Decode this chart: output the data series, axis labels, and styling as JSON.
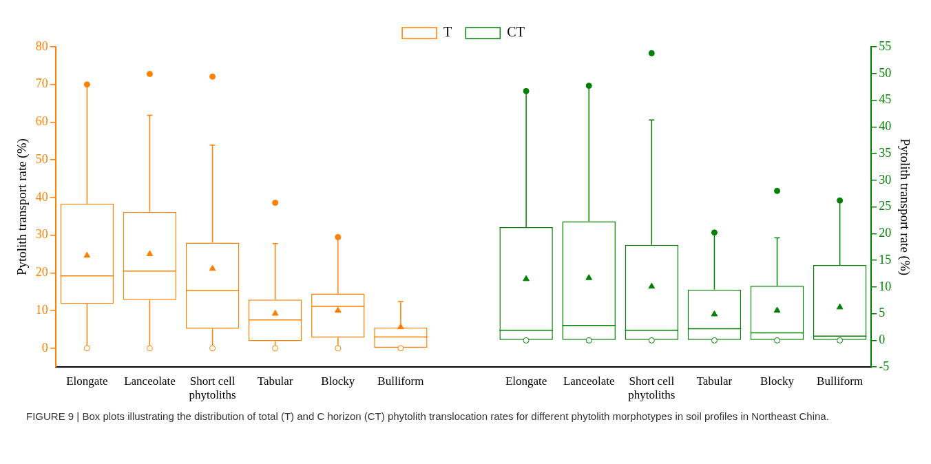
{
  "chart_data": {
    "type": "box",
    "ylabel": "Pytolith transport rate (%)",
    "y2label": "Pytolith transport rate (%)",
    "categories": [
      "Elongate",
      "Lanceolate",
      "Short cell phytoliths",
      "Tabular",
      "Blocky",
      "Bulliform",
      null,
      "Elongate",
      "Lanceolate",
      "Short cell phytoliths",
      "Tabular",
      "Blocky",
      "Bulliform"
    ],
    "ylim": [
      -5,
      80
    ],
    "yticks": [
      0,
      10,
      20,
      30,
      40,
      50,
      60,
      70,
      80
    ],
    "y2lim": [
      -5,
      55
    ],
    "y2ticks": [
      -5,
      0,
      5,
      10,
      15,
      20,
      25,
      30,
      35,
      40,
      45,
      50,
      55
    ],
    "grid": false,
    "legend": "top",
    "series": [
      {
        "name": "T",
        "color": "#ff8000",
        "boxes": [
          {
            "low": 0,
            "q1": 11.8,
            "median": 19.2,
            "q3": 38.4,
            "high": 70,
            "mean": 24.6,
            "outliers": [
              0,
              70
            ]
          },
          {
            "low": 0,
            "q1": 12.8,
            "median": 20.5,
            "q3": 36.2,
            "high": 61.8,
            "mean": 25,
            "outliers": [
              0,
              72.8
            ]
          },
          {
            "low": 0,
            "q1": 5.2,
            "median": 15.3,
            "q3": 28,
            "high": 53.9,
            "mean": 21.1,
            "outliers": [
              0,
              72.1
            ]
          },
          {
            "low": 0,
            "q1": 1.9,
            "median": 7.5,
            "q3": 12.9,
            "high": 27.8,
            "mean": 9.2,
            "outliers": [
              0,
              38.6
            ]
          },
          {
            "low": 0,
            "q1": 2.8,
            "median": 11.1,
            "q3": 14.5,
            "high": 29.5,
            "mean": 10,
            "outliers": [
              0,
              29.5
            ]
          },
          {
            "low": 0,
            "q1": 0,
            "median": 3,
            "q3": 5.5,
            "high": 12.4,
            "mean": 5.6,
            "outliers": [
              0
            ]
          },
          null,
          null,
          null,
          null,
          null,
          null,
          null
        ]
      },
      {
        "name": "CT",
        "color": "#008000",
        "axis": "y2",
        "boxes": [
          null,
          null,
          null,
          null,
          null,
          null,
          null,
          {
            "low": 0,
            "q1": 0,
            "median": 1.9,
            "q3": 21.2,
            "high": 46.7,
            "mean": 11.5,
            "outliers": [
              0,
              46.7
            ]
          },
          {
            "low": 0,
            "q1": 0,
            "median": 2.8,
            "q3": 22.3,
            "high": 47.7,
            "mean": 11.7,
            "outliers": [
              0,
              47.7
            ]
          },
          {
            "low": 0,
            "q1": 0,
            "median": 1.9,
            "q3": 17.9,
            "high": 41.3,
            "mean": 10.1,
            "outliers": [
              0,
              53.8
            ]
          },
          {
            "low": 0,
            "q1": 0,
            "median": 2.2,
            "q3": 9.5,
            "high": 20.2,
            "mean": 4.9,
            "outliers": [
              0,
              20.2
            ]
          },
          {
            "low": 0,
            "q1": 0,
            "median": 1.4,
            "q3": 10.2,
            "high": 19.2,
            "mean": 5.6,
            "outliers": [
              0,
              28
            ]
          },
          {
            "low": 0,
            "q1": 0,
            "median": 0.8,
            "q3": 14.1,
            "high": 26.2,
            "mean": 6.2,
            "outliers": [
              0,
              26.2
            ]
          }
        ]
      }
    ],
    "annotations": [
      "FIGURE 9 | Box plots illustrating the distribution of total (T) and C horizon (CT) phytolith translocation rates for different phytolith morphotypes in soil profiles in Northeast China."
    ]
  }
}
